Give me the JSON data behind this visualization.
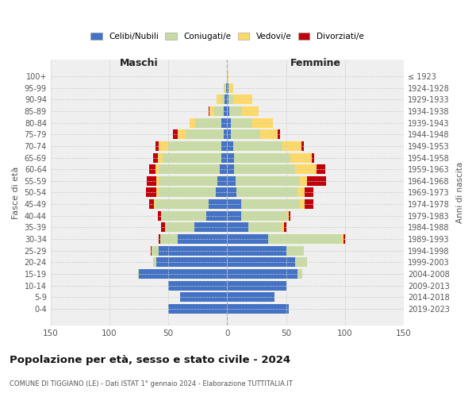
{
  "age_groups": [
    "100+",
    "95-99",
    "90-94",
    "85-89",
    "80-84",
    "75-79",
    "70-74",
    "65-69",
    "60-64",
    "55-59",
    "50-54",
    "45-49",
    "40-44",
    "35-39",
    "30-34",
    "25-29",
    "20-24",
    "15-19",
    "10-14",
    "5-9",
    "0-4"
  ],
  "birth_years": [
    "≤ 1923",
    "1924-1928",
    "1929-1933",
    "1934-1938",
    "1939-1943",
    "1944-1948",
    "1949-1953",
    "1954-1958",
    "1959-1963",
    "1964-1968",
    "1969-1973",
    "1974-1978",
    "1979-1983",
    "1984-1988",
    "1989-1993",
    "1994-1998",
    "1999-2003",
    "2004-2008",
    "2009-2013",
    "2014-2018",
    "2019-2023"
  ],
  "male_celibe": [
    0,
    1,
    2,
    3,
    5,
    3,
    5,
    5,
    6,
    8,
    10,
    16,
    18,
    28,
    42,
    58,
    60,
    75,
    50,
    40,
    50
  ],
  "male_coniugato": [
    0,
    1,
    3,
    8,
    22,
    32,
    45,
    50,
    52,
    50,
    48,
    45,
    38,
    25,
    15,
    6,
    3,
    1,
    0,
    0,
    0
  ],
  "male_vedovo": [
    0,
    1,
    4,
    4,
    5,
    7,
    8,
    4,
    3,
    2,
    2,
    1,
    0,
    0,
    0,
    0,
    0,
    0,
    0,
    0,
    0
  ],
  "male_divorziato": [
    0,
    0,
    0,
    1,
    0,
    4,
    3,
    4,
    5,
    8,
    9,
    4,
    3,
    3,
    1,
    1,
    0,
    0,
    0,
    0,
    0
  ],
  "female_nubile": [
    0,
    1,
    1,
    2,
    3,
    3,
    5,
    6,
    6,
    7,
    8,
    12,
    12,
    18,
    35,
    50,
    58,
    60,
    50,
    40,
    52
  ],
  "female_coniugata": [
    0,
    1,
    4,
    10,
    18,
    25,
    42,
    48,
    52,
    55,
    52,
    50,
    38,
    28,
    62,
    15,
    10,
    4,
    0,
    0,
    0
  ],
  "female_vedova": [
    1,
    3,
    16,
    15,
    18,
    15,
    16,
    18,
    18,
    6,
    6,
    4,
    2,
    2,
    2,
    0,
    0,
    0,
    0,
    0,
    0
  ],
  "female_divorziata": [
    0,
    0,
    0,
    0,
    0,
    2,
    2,
    2,
    7,
    16,
    7,
    7,
    2,
    2,
    1,
    0,
    0,
    0,
    0,
    0,
    0
  ],
  "col_celibe": "#4472c4",
  "col_coniugato": "#c8dba4",
  "col_vedovo": "#ffd966",
  "col_divorziato": "#c0000b",
  "xlim": 150,
  "title": "Popolazione per età, sesso e stato civile - 2024",
  "subtitle": "COMUNE DI TIGGIANO (LE) - Dati ISTAT 1° gennaio 2024 - Elaborazione TUTTITALIA.IT",
  "ylabel_left": "Fasce di età",
  "ylabel_right": "Anni di nascita",
  "legend_labels": [
    "Celibi/Nubili",
    "Coniugati/e",
    "Vedovi/e",
    "Divorziati/e"
  ],
  "label_maschi": "Maschi",
  "label_femmine": "Femmine",
  "bg_color": "#efefef",
  "grid_color": "#cccccc"
}
